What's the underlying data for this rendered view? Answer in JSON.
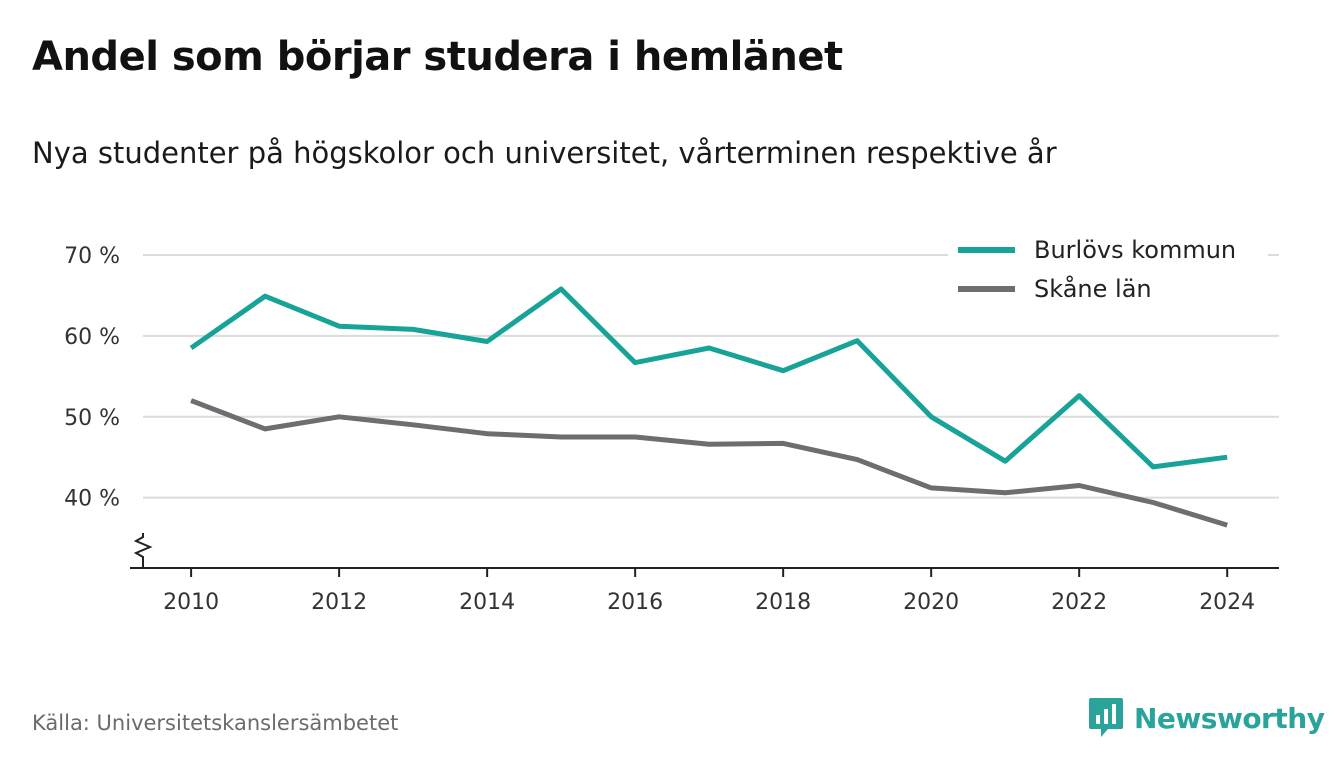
{
  "title": "Andel som börjar studera i hemlänet",
  "subtitle": "Nya studenter på högskolor och universitet, vårterminen respektive år",
  "source": "Källa: Universitetskanslersämbetet",
  "brand": {
    "name": "Newsworthy",
    "icon": "newsworthy-logo-icon",
    "color": "#2aa39a"
  },
  "chart_data": {
    "type": "line",
    "x": [
      2010,
      2011,
      2012,
      2013,
      2014,
      2015,
      2016,
      2017,
      2018,
      2019,
      2020,
      2021,
      2022,
      2023,
      2024
    ],
    "series": [
      {
        "name": "Burlövs kommun",
        "color": "#17a398",
        "values": [
          58.5,
          64.9,
          61.2,
          60.8,
          59.3,
          65.8,
          56.7,
          58.5,
          55.7,
          59.4,
          50.0,
          44.5,
          52.6,
          43.8,
          45.0
        ]
      },
      {
        "name": "Skåne län",
        "color": "#6d6d72",
        "values": [
          52.0,
          48.5,
          50.0,
          49.0,
          47.9,
          47.5,
          47.5,
          46.6,
          46.7,
          44.7,
          41.2,
          40.6,
          41.5,
          39.4,
          36.6
        ]
      }
    ],
    "yticks": [
      {
        "value": 40,
        "label": "40 %"
      },
      {
        "value": 50,
        "label": "50 %"
      },
      {
        "value": 60,
        "label": "60 %"
      },
      {
        "value": 70,
        "label": "70 %"
      }
    ],
    "xticks": [
      2010,
      2012,
      2014,
      2016,
      2018,
      2020,
      2022,
      2024
    ],
    "ylim": [
      31.3,
      70
    ],
    "xlim": [
      2009.35,
      2024.7
    ],
    "axis_break": true,
    "grid": "horizontal",
    "legend_position": "top-right"
  }
}
